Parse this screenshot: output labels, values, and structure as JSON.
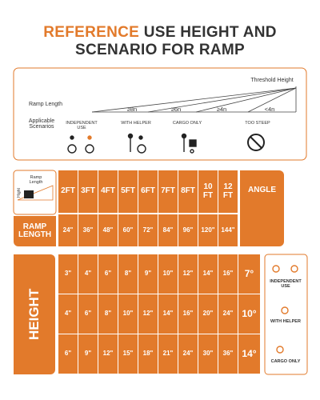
{
  "title": {
    "highlight": "REFERENCE",
    "line1": "USE HEIGHT AND",
    "line2": "SCENARIO FOR RAMP"
  },
  "diagram": {
    "threshold_label": "Threshold Height",
    "length_label": "Ramp Length",
    "scenarios_label": "Applicable Scenarios",
    "ratios": [
      "≥8n",
      "≥6n",
      "≥4n",
      "<4n"
    ],
    "scenarios": [
      "INDEPENDENT USE",
      "WITH HELPER",
      "CARGO ONLY",
      "TOO STEEP"
    ]
  },
  "table": {
    "corner": {
      "length": "Ramp Length",
      "height": "Hight"
    },
    "lengths": [
      "2FT",
      "3FT",
      "4FT",
      "5FT",
      "6FT",
      "7FT",
      "8FT",
      "10 FT",
      "12 FT"
    ],
    "angle_header": "ANGLE",
    "length_row_label": "RAMP LENGTH",
    "length_inches": [
      "24\"",
      "36\"",
      "48\"",
      "60\"",
      "72\"",
      "84\"",
      "96\"",
      "120\"",
      "144\""
    ],
    "height_label": "HEIGHT",
    "rows": [
      {
        "heights": [
          "3\"",
          "4\"",
          "6\"",
          "8\"",
          "9\"",
          "10\"",
          "12\"",
          "14\"",
          "16\""
        ],
        "angle": "7°"
      },
      {
        "heights": [
          "4\"",
          "6\"",
          "8\"",
          "10\"",
          "12\"",
          "14\"",
          "16\"",
          "20\"",
          "24\""
        ],
        "angle": "10°"
      },
      {
        "heights": [
          "6\"",
          "9\"",
          "12\"",
          "15\"",
          "18\"",
          "21\"",
          "24\"",
          "30\"",
          "36\""
        ],
        "angle": "14°"
      }
    ]
  },
  "side_panel": [
    "INDEPENDENT USE",
    "WITH HELPER",
    "CARGO ONLY"
  ]
}
